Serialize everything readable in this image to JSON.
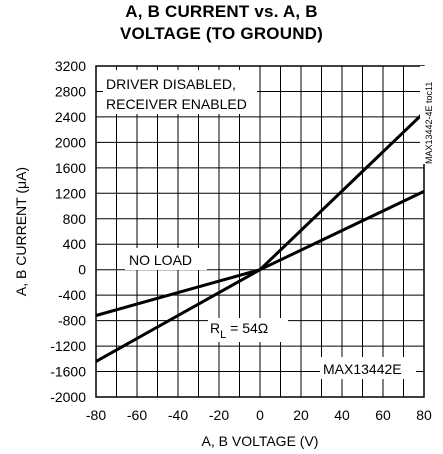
{
  "chart_data": {
    "type": "line",
    "title_lines": [
      "A, B CURRENT vs. A, B",
      "VOLTAGE (TO GROUND)"
    ],
    "xlabel": "A, B VOLTAGE (V)",
    "ylabel": "A, B CURRENT (μA)",
    "xlim": [
      -80,
      80
    ],
    "ylim": [
      -2000,
      3200
    ],
    "x_ticks": [
      -80,
      -60,
      -40,
      -20,
      0,
      20,
      40,
      60,
      80
    ],
    "y_ticks": [
      3200,
      2800,
      2400,
      2000,
      1600,
      1200,
      800,
      400,
      0,
      -400,
      -800,
      -1200,
      -1600,
      -2000
    ],
    "x_tick_labels": [
      "-80",
      "-60",
      "-40",
      "-20",
      "0",
      "20",
      "40",
      "60",
      "80"
    ],
    "y_tick_labels": [
      "3200",
      "2800",
      "2400",
      "2000",
      "1600",
      "1200",
      "800",
      "400",
      "0",
      "-400",
      "-800",
      "-1200",
      "-1600",
      "-2000"
    ],
    "grid": true,
    "series": [
      {
        "name": "NO LOAD",
        "x": [
          -80,
          0,
          80
        ],
        "y": [
          -720,
          0,
          1230
        ]
      },
      {
        "name": "RL = 54Ω",
        "x": [
          -80,
          0,
          80
        ],
        "y": [
          -1440,
          0,
          2470
        ]
      }
    ],
    "annotations": {
      "condition_line_1": "DRIVER DISABLED,",
      "condition_line_2": "RECEIVER ENABLED",
      "no_load_label": "NO LOAD",
      "rl_label_main": "R",
      "rl_label_sub": "L",
      "rl_label_rest": " = 54Ω",
      "part_number": "MAX13442E",
      "figure_id": "MAX13442-4E toc11"
    },
    "line_color": "#000000"
  }
}
